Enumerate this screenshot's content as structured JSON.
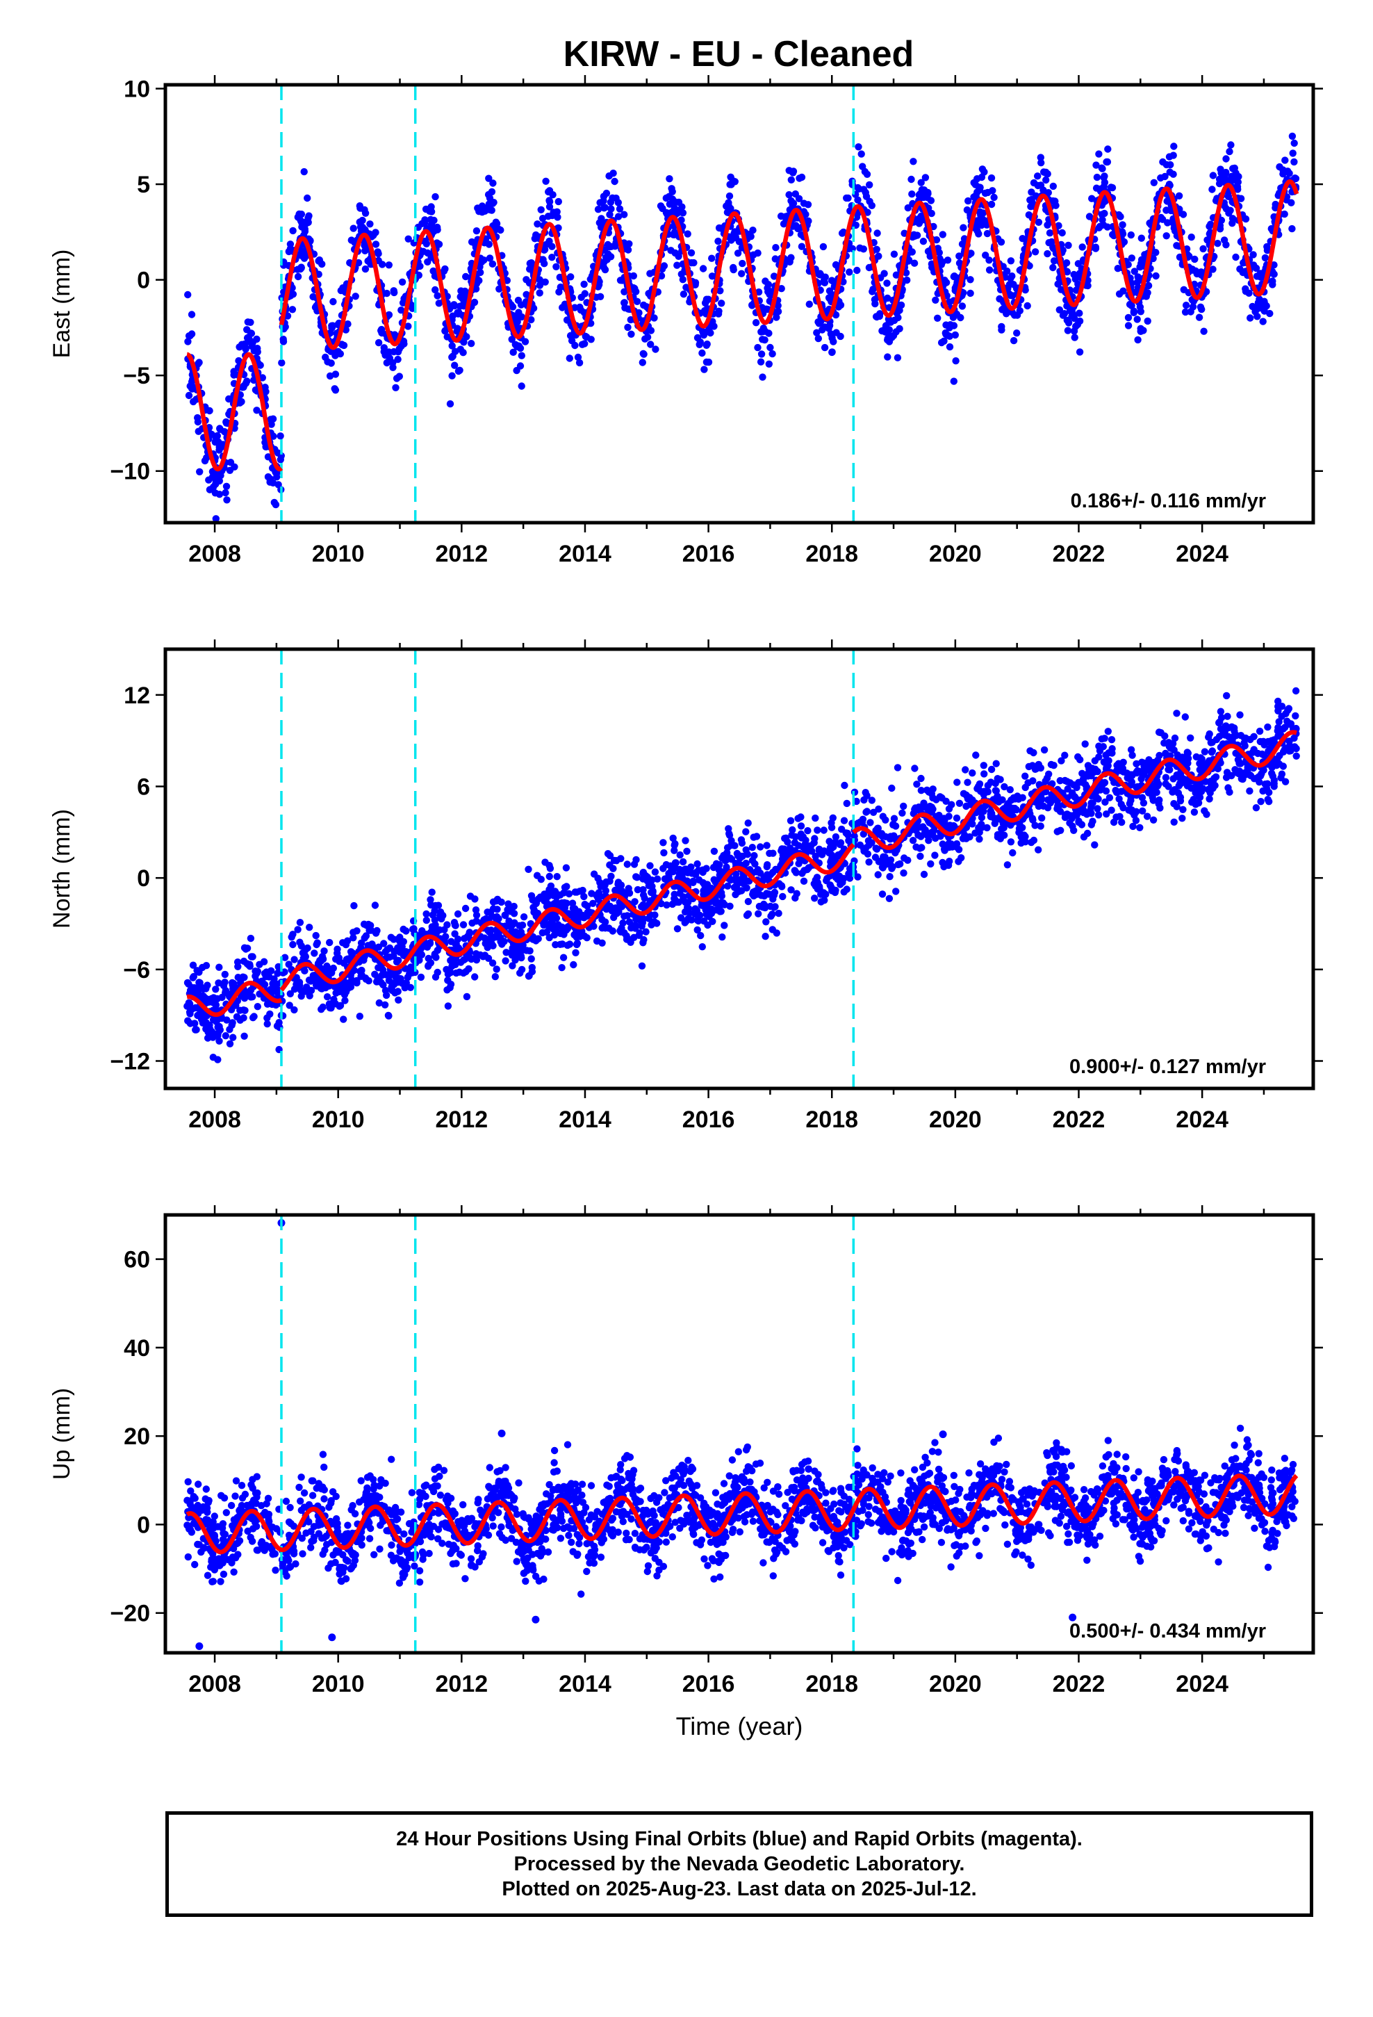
{
  "title": "KIRW  - EU - Cleaned",
  "colors": {
    "points": "#0000ff",
    "fit": "#ff0000",
    "offsets": "#00e5ee",
    "frame": "#000000"
  },
  "caption": {
    "line1": "24 Hour Positions Using Final Orbits (blue) and Rapid Orbits (magenta).",
    "line2": "Processed by the Nevada Geodetic Laboratory.",
    "line3": "Plotted on 2025-Aug-23. Last data on 2025-Jul-12."
  },
  "chart_data": [
    {
      "type": "scatter",
      "component": "east",
      "ylabel": "East (mm)",
      "xlim": [
        2007.2,
        2025.8
      ],
      "ylim": [
        -12.7,
        10.2
      ],
      "yticks": [
        10,
        5,
        0,
        -5,
        -10
      ],
      "ytick_labels": [
        "10",
        "5",
        "0",
        "−5",
        "−10"
      ],
      "xticks": [
        2008,
        2010,
        2012,
        2014,
        2016,
        2018,
        2020,
        2022,
        2024
      ],
      "x_range": [
        2007.55,
        2025.53
      ],
      "offset_lines": [
        2009.08,
        2011.25,
        2018.35
      ],
      "trend_text": "0.186+/- 0.116 mm/yr",
      "fit_segments": [
        {
          "start": 2007.55,
          "end": 2009.08,
          "base_at_start": -6.9,
          "rate": 0.0,
          "amplitude": 3.0,
          "peak_phase": 0.55
        },
        {
          "start": 2009.08,
          "end": 2025.53,
          "base_at_start": -0.8,
          "rate": 0.186,
          "amplitude": 2.9,
          "peak_phase": 0.42
        }
      ],
      "scatter_sigma": 1.15
    },
    {
      "type": "scatter",
      "component": "north",
      "ylabel": "North (mm)",
      "xlim": [
        2007.2,
        2025.8
      ],
      "ylim": [
        -13.8,
        15.0
      ],
      "yticks": [
        12,
        6,
        0,
        -6,
        -12
      ],
      "ytick_labels": [
        "12",
        "6",
        "0",
        "−6",
        "−12"
      ],
      "xticks": [
        2008,
        2010,
        2012,
        2014,
        2016,
        2018,
        2020,
        2022,
        2024
      ],
      "x_range": [
        2007.55,
        2025.53
      ],
      "offset_lines": [
        2009.08,
        2011.25,
        2018.35
      ],
      "trend_text": "0.900+/- 0.127 mm/yr",
      "fit_segments": [
        {
          "start": 2007.55,
          "end": 2009.08,
          "base_at_start": -8.6,
          "rate": 0.9,
          "amplitude": 0.8,
          "peak_phase": 0.55
        },
        {
          "start": 2009.08,
          "end": 2018.35,
          "base_at_start": -6.8,
          "rate": 0.9,
          "amplitude": 0.8,
          "peak_phase": 0.45
        },
        {
          "start": 2018.35,
          "end": 2025.53,
          "base_at_start": 2.3,
          "rate": 0.9,
          "amplitude": 0.85,
          "peak_phase": 0.45
        }
      ],
      "scatter_sigma": 1.3
    },
    {
      "type": "scatter",
      "component": "up",
      "ylabel": "Up (mm)",
      "xlabel": "Time (year)",
      "xlim": [
        2007.2,
        2025.8
      ],
      "ylim": [
        -29.0,
        70.0
      ],
      "yticks": [
        60,
        40,
        20,
        0,
        -20
      ],
      "ytick_labels": [
        "60",
        "40",
        "20",
        "0",
        "−20"
      ],
      "xticks": [
        2008,
        2010,
        2012,
        2014,
        2016,
        2018,
        2020,
        2022,
        2024
      ],
      "x_range": [
        2007.55,
        2025.53
      ],
      "offset_lines": [
        2009.08,
        2011.25,
        2018.35
      ],
      "trend_text": "0.500+/- 0.434 mm/yr",
      "fit_segments": [
        {
          "start": 2007.55,
          "end": 2025.53,
          "base_at_start": -2.0,
          "rate": 0.5,
          "amplitude": 4.5,
          "peak_phase": 0.6
        }
      ],
      "scatter_sigma": 4.3,
      "outliers": [
        [
          2009.08,
          68.2
        ],
        [
          2012.65,
          20.6
        ],
        [
          2019.8,
          20.4
        ],
        [
          2007.75,
          -27.5
        ],
        [
          2009.9,
          -25.5
        ],
        [
          2013.2,
          -21.5
        ],
        [
          2021.9,
          -21.0
        ]
      ]
    }
  ]
}
